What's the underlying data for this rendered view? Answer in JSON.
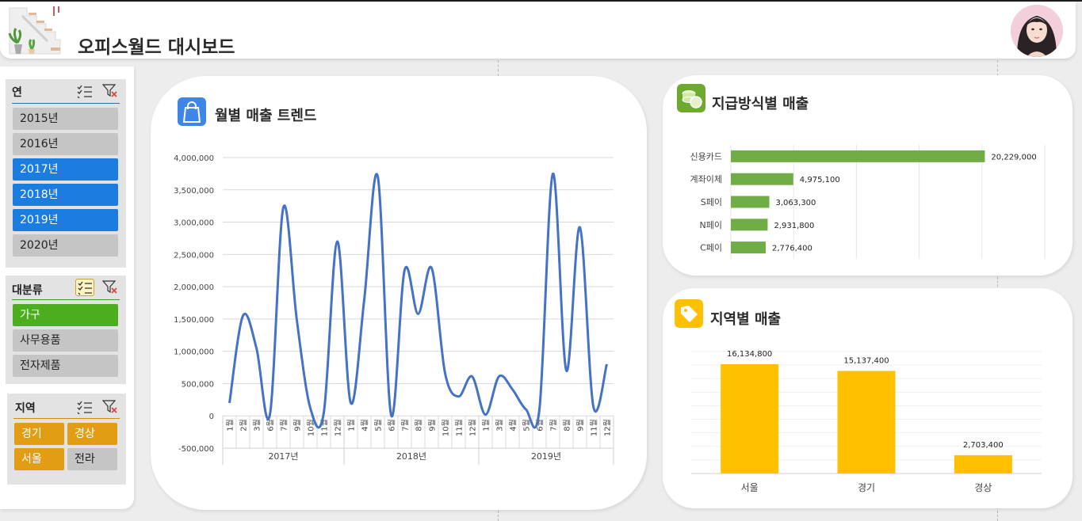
{
  "app": {
    "title": "오피스월드 대시보드"
  },
  "header": {
    "logo_icon": "stairs-plants-logo-icon",
    "avatar_icon": "user-avatar"
  },
  "slicers": {
    "year": {
      "title": "연",
      "items": [
        {
          "label": "2015년",
          "selected": false
        },
        {
          "label": "2016년",
          "selected": false
        },
        {
          "label": "2017년",
          "selected": true
        },
        {
          "label": "2018년",
          "selected": true
        },
        {
          "label": "2019년",
          "selected": true
        },
        {
          "label": "2020년",
          "selected": false
        }
      ]
    },
    "category": {
      "title": "대분류",
      "items": [
        {
          "label": "가구",
          "selected": true
        },
        {
          "label": "사무용품",
          "selected": false
        },
        {
          "label": "전자제품",
          "selected": false
        }
      ]
    },
    "region": {
      "title": "지역",
      "items": [
        {
          "label": "경기",
          "selected": true
        },
        {
          "label": "경상",
          "selected": true
        },
        {
          "label": "서울",
          "selected": true
        },
        {
          "label": "전라",
          "selected": false
        }
      ]
    }
  },
  "colors": {
    "line": "#4472c4",
    "payment_bar": "#70ad47",
    "region_bar": "#ffc000",
    "slicer_selected_year": "#1a7ddf",
    "slicer_selected_category": "#4cae1f",
    "slicer_selected_region": "#e29d14"
  },
  "cards": {
    "trend": {
      "title": "월별 매출 트렌드",
      "icon": "shopping-bag-icon"
    },
    "payment": {
      "title": "지급방식별 매출",
      "icon": "coins-icon"
    },
    "region": {
      "title": "지역별 매출",
      "icon": "price-tag-icon"
    }
  },
  "chart_data": [
    {
      "type": "line",
      "title": "월별 매출 트렌드",
      "y_ticks": [
        "4,000,000",
        "3,500,000",
        "3,000,000",
        "2,500,000",
        "2,000,000",
        "1,500,000",
        "1,000,000",
        "500,000",
        "0",
        "-500,000"
      ],
      "ylim": [
        -500000,
        4000000
      ],
      "month_suffix": "월",
      "groups": [
        {
          "label": "2017년",
          "months": [
            "1",
            "2",
            "3",
            "6",
            "7",
            "9",
            "10",
            "11",
            "12"
          ],
          "values": [
            200000,
            1550000,
            1050000,
            20000,
            3230000,
            1480000,
            120000,
            50000,
            2700000
          ]
        },
        {
          "label": "2018년",
          "months": [
            "1",
            "4",
            "5",
            "6",
            "7",
            "8",
            "9",
            "10",
            "11",
            "12"
          ],
          "values": [
            200000,
            1800000,
            3710000,
            10000,
            2260000,
            1580000,
            2290000,
            660000,
            300000,
            610000
          ]
        },
        {
          "label": "2019년",
          "months": [
            "1",
            "3",
            "4",
            "5",
            "6",
            "7",
            "8",
            "9",
            "11",
            "12"
          ],
          "values": [
            20000,
            610000,
            410000,
            100000,
            100000,
            3750000,
            700000,
            2920000,
            150000,
            800000
          ]
        }
      ],
      "legend": "none"
    },
    {
      "type": "bar",
      "orientation": "horizontal",
      "title": "지급방식별 매출",
      "categories": [
        "신용카드",
        "계좌이체",
        "S페이",
        "N페이",
        "C페이"
      ],
      "values": [
        20229000,
        4975100,
        3063300,
        2931800,
        2776400
      ],
      "value_labels": [
        "20,229,000",
        "4,975,100",
        "3,063,300",
        "2,931,800",
        "2,776,400"
      ],
      "xlim": [
        0,
        25000000
      ]
    },
    {
      "type": "bar",
      "orientation": "vertical",
      "title": "지역별 매출",
      "categories": [
        "서울",
        "경기",
        "경상"
      ],
      "values": [
        16134800,
        15137400,
        2703400
      ],
      "value_labels": [
        "16,134,800",
        "15,137,400",
        "2,703,400"
      ],
      "ylim": [
        0,
        18000000
      ]
    }
  ]
}
